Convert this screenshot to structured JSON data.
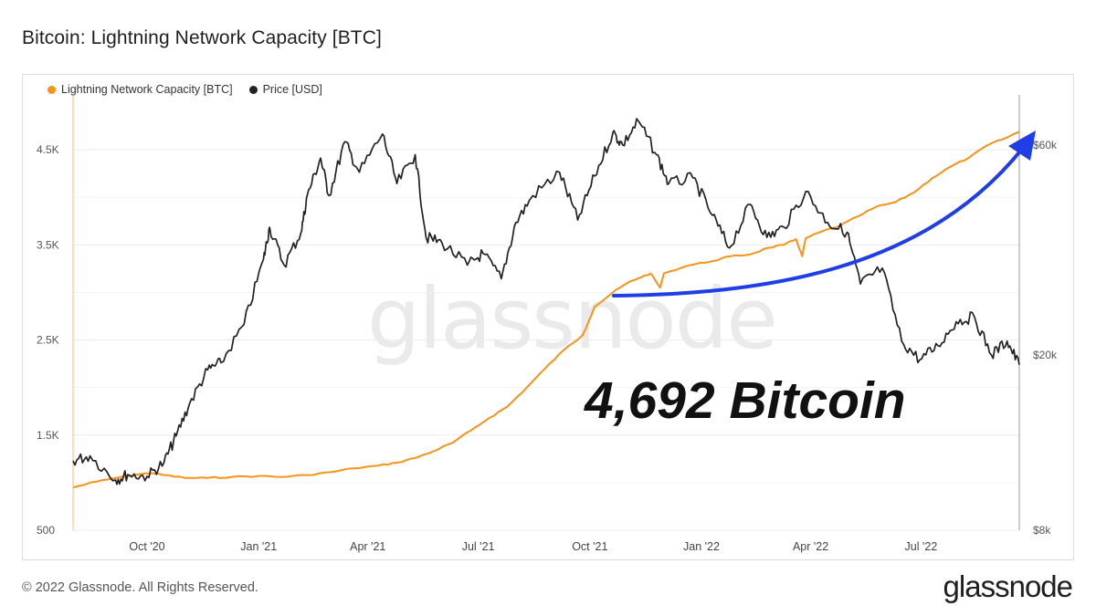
{
  "page": {
    "title": "Bitcoin: Lightning Network Capacity [BTC]",
    "watermark": "glassnode",
    "callout": "4,692 Bitcoin",
    "footer_copyright": "© 2022 Glassnode. All Rights Reserved.",
    "footer_logo": "glassnode"
  },
  "colors": {
    "capacity": "#f7931a",
    "price": "#222222",
    "arrow": "#1f3ee8",
    "grid": "#ececec"
  },
  "chart_data": {
    "type": "line",
    "title": "Bitcoin: Lightning Network Capacity [BTC]",
    "legend": {
      "placement": "top-left"
    },
    "grid": true,
    "x_range": [
      "2020-08-01",
      "2022-09-20"
    ],
    "x_ticks": [
      {
        "date": "2020-10-01",
        "label": "Oct '20"
      },
      {
        "date": "2021-01-01",
        "label": "Jan '21"
      },
      {
        "date": "2021-04-01",
        "label": "Apr '21"
      },
      {
        "date": "2021-07-01",
        "label": "Jul '21"
      },
      {
        "date": "2021-10-01",
        "label": "Oct '21"
      },
      {
        "date": "2022-01-01",
        "label": "Jan '22"
      },
      {
        "date": "2022-04-01",
        "label": "Apr '22"
      },
      {
        "date": "2022-07-01",
        "label": "Jul '22"
      }
    ],
    "y_left": {
      "range": [
        500,
        5000
      ],
      "ticks": [
        {
          "value": 500,
          "label": "500"
        },
        {
          "value": 1500,
          "label": "1.5K"
        },
        {
          "value": 2500,
          "label": "2.5K"
        },
        {
          "value": 3500,
          "label": "3.5K"
        },
        {
          "value": 4500,
          "label": "4.5K"
        }
      ]
    },
    "y_right": {
      "scale": "log",
      "range": [
        8000,
        75000
      ],
      "ticks": [
        {
          "value": 8000,
          "label": "$8k"
        },
        {
          "value": 20000,
          "label": "$20k"
        },
        {
          "value": 60000,
          "label": "$60k"
        }
      ]
    },
    "series": [
      {
        "name": "Lightning Network Capacity [BTC]",
        "axis": "left",
        "color": "#f7931a",
        "points": [
          [
            "2020-08-01",
            950
          ],
          [
            "2020-08-20",
            1010
          ],
          [
            "2020-09-10",
            1060
          ],
          [
            "2020-09-25",
            1090
          ],
          [
            "2020-10-05",
            1100
          ],
          [
            "2020-10-15",
            1080
          ],
          [
            "2020-11-01",
            1050
          ],
          [
            "2020-11-20",
            1050
          ],
          [
            "2020-12-10",
            1060
          ],
          [
            "2021-01-01",
            1070
          ],
          [
            "2021-01-20",
            1060
          ],
          [
            "2021-02-10",
            1080
          ],
          [
            "2021-03-01",
            1110
          ],
          [
            "2021-03-20",
            1150
          ],
          [
            "2021-04-10",
            1180
          ],
          [
            "2021-04-25",
            1210
          ],
          [
            "2021-05-10",
            1260
          ],
          [
            "2021-05-25",
            1330
          ],
          [
            "2021-06-10",
            1420
          ],
          [
            "2021-06-25",
            1550
          ],
          [
            "2021-07-10",
            1680
          ],
          [
            "2021-07-25",
            1800
          ],
          [
            "2021-08-10",
            2000
          ],
          [
            "2021-08-25",
            2200
          ],
          [
            "2021-09-10",
            2400
          ],
          [
            "2021-09-25",
            2550
          ],
          [
            "2021-10-05",
            2850
          ],
          [
            "2021-10-20",
            3000
          ],
          [
            "2021-11-01",
            3100
          ],
          [
            "2021-11-10",
            3150
          ],
          [
            "2021-11-20",
            3200
          ],
          [
            "2021-11-28",
            3050
          ],
          [
            "2021-12-01",
            3200
          ],
          [
            "2021-12-20",
            3280
          ],
          [
            "2022-01-10",
            3330
          ],
          [
            "2022-01-25",
            3380
          ],
          [
            "2022-02-10",
            3400
          ],
          [
            "2022-02-25",
            3470
          ],
          [
            "2022-03-10",
            3500
          ],
          [
            "2022-03-20",
            3560
          ],
          [
            "2022-03-25",
            3380
          ],
          [
            "2022-03-28",
            3570
          ],
          [
            "2022-04-10",
            3640
          ],
          [
            "2022-04-25",
            3700
          ],
          [
            "2022-05-10",
            3800
          ],
          [
            "2022-05-25",
            3900
          ],
          [
            "2022-06-10",
            3950
          ],
          [
            "2022-06-25",
            4050
          ],
          [
            "2022-07-10",
            4200
          ],
          [
            "2022-07-25",
            4320
          ],
          [
            "2022-08-10",
            4420
          ],
          [
            "2022-08-25",
            4550
          ],
          [
            "2022-09-10",
            4630
          ],
          [
            "2022-09-20",
            4692
          ]
        ]
      },
      {
        "name": "Price [USD]",
        "axis": "right",
        "color": "#222222",
        "points": [
          [
            "2020-08-01",
            11500
          ],
          [
            "2020-08-15",
            11800
          ],
          [
            "2020-09-05",
            10400
          ],
          [
            "2020-09-15",
            10700
          ],
          [
            "2020-10-01",
            10600
          ],
          [
            "2020-10-15",
            11400
          ],
          [
            "2020-10-25",
            13100
          ],
          [
            "2020-11-05",
            15500
          ],
          [
            "2020-11-20",
            18500
          ],
          [
            "2020-12-01",
            19200
          ],
          [
            "2020-12-20",
            23500
          ],
          [
            "2021-01-05",
            33000
          ],
          [
            "2021-01-10",
            39000
          ],
          [
            "2021-01-22",
            32000
          ],
          [
            "2021-02-05",
            38000
          ],
          [
            "2021-02-10",
            46000
          ],
          [
            "2021-02-21",
            56000
          ],
          [
            "2021-02-28",
            46000
          ],
          [
            "2021-03-13",
            61000
          ],
          [
            "2021-03-25",
            52000
          ],
          [
            "2021-04-13",
            63500
          ],
          [
            "2021-04-25",
            49000
          ],
          [
            "2021-05-10",
            57000
          ],
          [
            "2021-05-19",
            37000
          ],
          [
            "2021-06-01",
            36000
          ],
          [
            "2021-06-22",
            32000
          ],
          [
            "2021-07-05",
            34000
          ],
          [
            "2021-07-20",
            29800
          ],
          [
            "2021-08-01",
            40000
          ],
          [
            "2021-08-15",
            46000
          ],
          [
            "2021-09-06",
            52000
          ],
          [
            "2021-09-21",
            40500
          ],
          [
            "2021-10-05",
            51000
          ],
          [
            "2021-10-20",
            64000
          ],
          [
            "2021-10-28",
            60000
          ],
          [
            "2021-11-10",
            68000
          ],
          [
            "2021-11-25",
            57000
          ],
          [
            "2021-12-05",
            49000
          ],
          [
            "2021-12-25",
            50500
          ],
          [
            "2022-01-10",
            41500
          ],
          [
            "2022-01-24",
            35000
          ],
          [
            "2022-02-10",
            44000
          ],
          [
            "2022-02-24",
            37000
          ],
          [
            "2022-03-10",
            39000
          ],
          [
            "2022-03-28",
            47000
          ],
          [
            "2022-04-15",
            40000
          ],
          [
            "2022-05-01",
            38000
          ],
          [
            "2022-05-12",
            29000
          ],
          [
            "2022-05-30",
            31500
          ],
          [
            "2022-06-15",
            21500
          ],
          [
            "2022-06-30",
            19500
          ],
          [
            "2022-07-15",
            21000
          ],
          [
            "2022-07-30",
            23800
          ],
          [
            "2022-08-14",
            24400
          ],
          [
            "2022-08-28",
            20000
          ],
          [
            "2022-09-10",
            21500
          ],
          [
            "2022-09-20",
            19000
          ]
        ]
      }
    ]
  }
}
